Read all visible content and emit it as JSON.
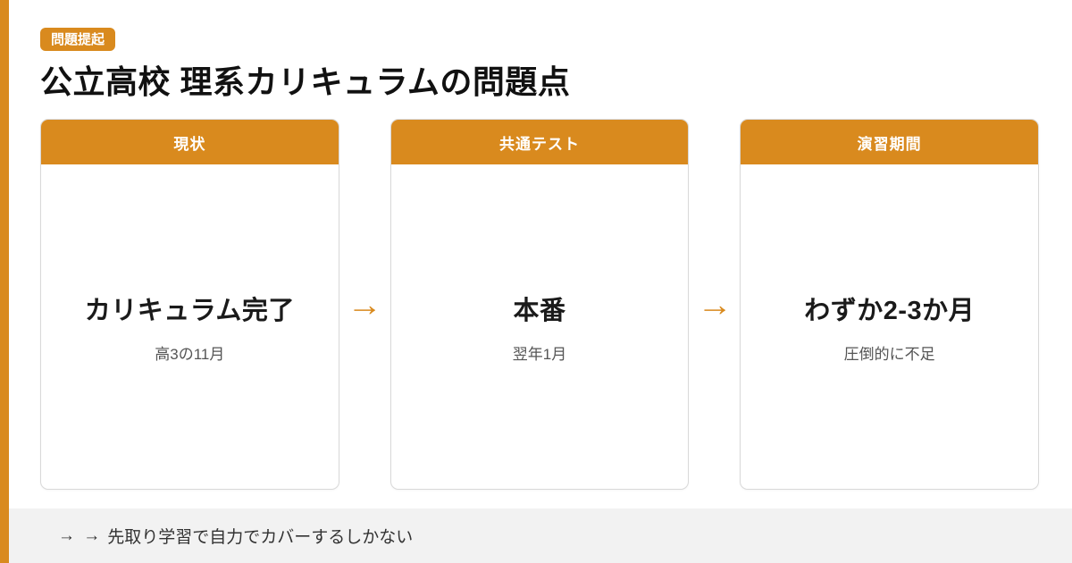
{
  "colors": {
    "accent_orange": "#D98A1E",
    "footer_background": "#F2F2F2",
    "card_border": "#D9D9D9",
    "text_primary": "#1A1A1A",
    "text_secondary": "#555555"
  },
  "badge": "問題提起",
  "title": "公立高校 理系カリキュラムの問題点",
  "cards": [
    {
      "header": "現状",
      "main": "カリキュラム完了",
      "sub": "高3の11月"
    },
    {
      "header": "共通テスト",
      "main": "本番",
      "sub": "翌年1月"
    },
    {
      "header": "演習期間",
      "main": "わずか2-3か月",
      "sub": "圧倒的に不足"
    }
  ],
  "arrows": {
    "between_cards": "→",
    "footer_prefix": "→ →"
  },
  "footer": {
    "text": "先取り学習で自力でカバーするしかない"
  }
}
